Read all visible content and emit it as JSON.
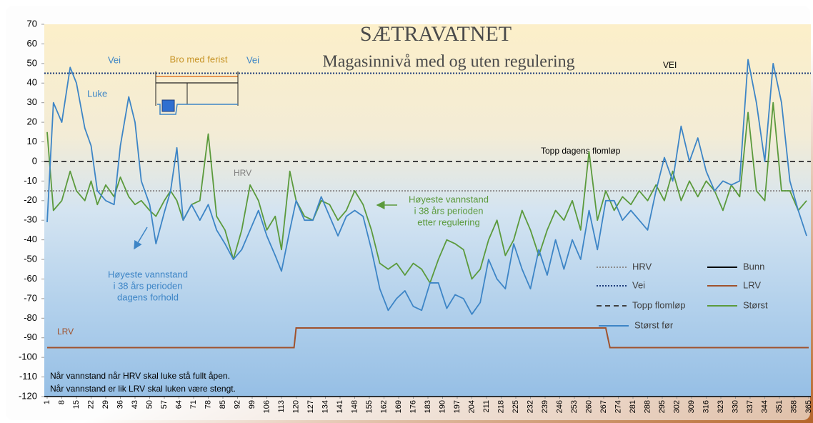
{
  "chart_data": {
    "type": "line",
    "title": "SÆTRAVATNET",
    "subtitle": "Magasinnivå med og uten regulering",
    "xlim": [
      1,
      365
    ],
    "xticks": [
      1,
      8,
      15,
      22,
      29,
      36,
      43,
      50,
      57,
      64,
      71,
      78,
      85,
      92,
      99,
      106,
      113,
      120,
      127,
      134,
      141,
      148,
      155,
      162,
      169,
      176,
      183,
      190,
      197,
      204,
      211,
      218,
      225,
      232,
      239,
      246,
      253,
      260,
      267,
      274,
      281,
      288,
      295,
      302,
      309,
      316,
      323,
      330,
      337,
      344,
      351,
      358,
      365
    ],
    "ylim": [
      -120,
      70
    ],
    "yticks": [
      -120,
      -110,
      -100,
      -90,
      -80,
      -70,
      -60,
      -50,
      -40,
      -30,
      -20,
      -10,
      0,
      10,
      20,
      30,
      40,
      50,
      60,
      70
    ],
    "x": [
      1,
      4,
      8,
      12,
      15,
      19,
      22,
      25,
      29,
      33,
      36,
      40,
      43,
      46,
      50,
      53,
      57,
      60,
      63,
      66,
      70,
      74,
      78,
      82,
      86,
      90,
      94,
      98,
      102,
      106,
      110,
      113,
      117,
      120,
      124,
      128,
      132,
      136,
      140,
      144,
      148,
      152,
      156,
      160,
      164,
      168,
      172,
      176,
      180,
      184,
      188,
      192,
      196,
      200,
      204,
      208,
      212,
      216,
      220,
      224,
      228,
      232,
      236,
      240,
      244,
      248,
      252,
      256,
      260,
      264,
      268,
      272,
      276,
      280,
      284,
      288,
      292,
      296,
      300,
      304,
      308,
      312,
      316,
      320,
      324,
      328,
      332,
      336,
      340,
      344,
      348,
      352,
      356,
      360,
      364
    ],
    "series": [
      {
        "name": "Størst",
        "color": "#5b9a3c",
        "values": [
          15,
          -25,
          -20,
          -5,
          -15,
          -20,
          -10,
          -22,
          -12,
          -18,
          -8,
          -18,
          -22,
          -20,
          -25,
          -28,
          -20,
          -15,
          -20,
          -30,
          -22,
          -20,
          14,
          -28,
          -35,
          -50,
          -35,
          -12,
          -20,
          -35,
          -28,
          -45,
          -5,
          -20,
          -28,
          -30,
          -20,
          -22,
          -30,
          -25,
          -15,
          -22,
          -35,
          -52,
          -55,
          -52,
          -58,
          -52,
          -55,
          -62,
          -50,
          -40,
          -42,
          -45,
          -60,
          -55,
          -40,
          -30,
          -48,
          -40,
          -25,
          -35,
          -48,
          -35,
          -25,
          -30,
          -20,
          -35,
          5,
          -30,
          -15,
          -25,
          -18,
          -22,
          -15,
          -20,
          -12,
          -20,
          -5,
          -20,
          -10,
          -18,
          -10,
          -15,
          -25,
          -12,
          -18,
          25,
          -15,
          -20,
          30,
          -15,
          -15,
          -25,
          -20
        ]
      },
      {
        "name": "Størst før",
        "color": "#3d85c6",
        "values": [
          -31,
          30,
          20,
          48,
          40,
          17,
          8,
          -15,
          -20,
          -22,
          8,
          33,
          20,
          -10,
          -22,
          -42,
          -26,
          -15,
          7,
          -30,
          -22,
          -30,
          -22,
          -35,
          -42,
          -50,
          -45,
          -35,
          -25,
          -38,
          -48,
          -56,
          -35,
          -20,
          -30,
          -30,
          -18,
          -28,
          -38,
          -28,
          -25,
          -28,
          -45,
          -65,
          -76,
          -70,
          -66,
          -74,
          -76,
          -62,
          -62,
          -75,
          -68,
          -70,
          -78,
          -72,
          -50,
          -60,
          -65,
          -42,
          -55,
          -65,
          -45,
          -58,
          -40,
          -55,
          -40,
          -50,
          -25,
          -45,
          -20,
          -20,
          -30,
          -25,
          -30,
          -35,
          -15,
          2,
          -10,
          18,
          0,
          12,
          -5,
          -15,
          -10,
          -12,
          -10,
          52,
          30,
          0,
          50,
          30,
          -10,
          -25,
          -38
        ]
      }
    ],
    "reference_lines": [
      {
        "name": "HRV",
        "value": -15,
        "color": "#8c8c8c",
        "style": "dotted"
      },
      {
        "name": "Vei",
        "value": 45,
        "color": "#1f3d7a",
        "style": "dotted"
      },
      {
        "name": "Topp flomløp",
        "value": 0,
        "color": "#404040",
        "style": "dashed"
      },
      {
        "name": "Bunn",
        "value": -120,
        "color": "#000000",
        "style": "solid"
      }
    ],
    "lrv": {
      "name": "LRV",
      "color": "#a0522d",
      "x": [
        1,
        119,
        120,
        268,
        270,
        365
      ],
      "values": [
        -95,
        -95,
        -85,
        -85,
        -95,
        -95
      ]
    },
    "annotations": {
      "vei_left": "Vei",
      "bridge": "Bro med ferist",
      "vei_right": "Vei",
      "gate": "Luke",
      "vei_label": "VEI",
      "flood_label": "Topp dagens flomløp",
      "hrv_label": "HRV",
      "lrv_label": "LRV",
      "after_regulation": [
        "Høyeste vannstand",
        "i 38 års perioden",
        "etter regulering"
      ],
      "current": [
        "Høyeste vannstand",
        "i 38 års perioden",
        "dagens forhold"
      ],
      "notes": [
        "Når vannstand når HRV skal luke stå fullt åpen.",
        "Når vannstand er lik LRV skal luken være stengt."
      ]
    }
  }
}
